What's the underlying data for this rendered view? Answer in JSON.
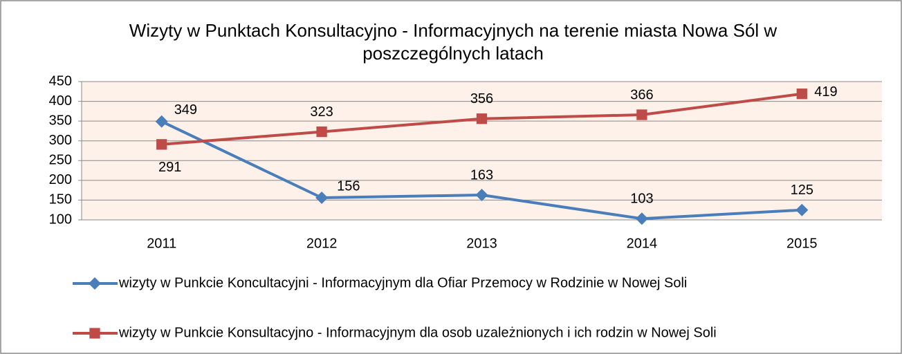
{
  "chart_data": {
    "type": "line",
    "title": "Wizyty w Punktach Konsultacyjno - Informacyjnych na terenie miasta Nowa Sól w poszczególnych latach",
    "categories": [
      "2011",
      "2012",
      "2013",
      "2014",
      "2015"
    ],
    "series": [
      {
        "name": "wizyty w Punkcie Koncultacyjni - Informacyjnym dla Ofiar Przemocy w Rodzinie w Nowej Soli",
        "color": "#4a7ebb",
        "marker": "diamond",
        "values": [
          349,
          156,
          163,
          103,
          125
        ]
      },
      {
        "name": "wizyty w Punkcie Konsultacyjno - Informacyjnym dla osob uzależnionych i ich rodzin w Nowej Soli",
        "color": "#be4b48",
        "marker": "square",
        "values": [
          291,
          323,
          356,
          366,
          419
        ]
      }
    ],
    "ylim": [
      100,
      450
    ],
    "yticks": [
      100,
      150,
      200,
      250,
      300,
      350,
      400,
      450
    ],
    "grid": true,
    "legend": "bottom"
  }
}
